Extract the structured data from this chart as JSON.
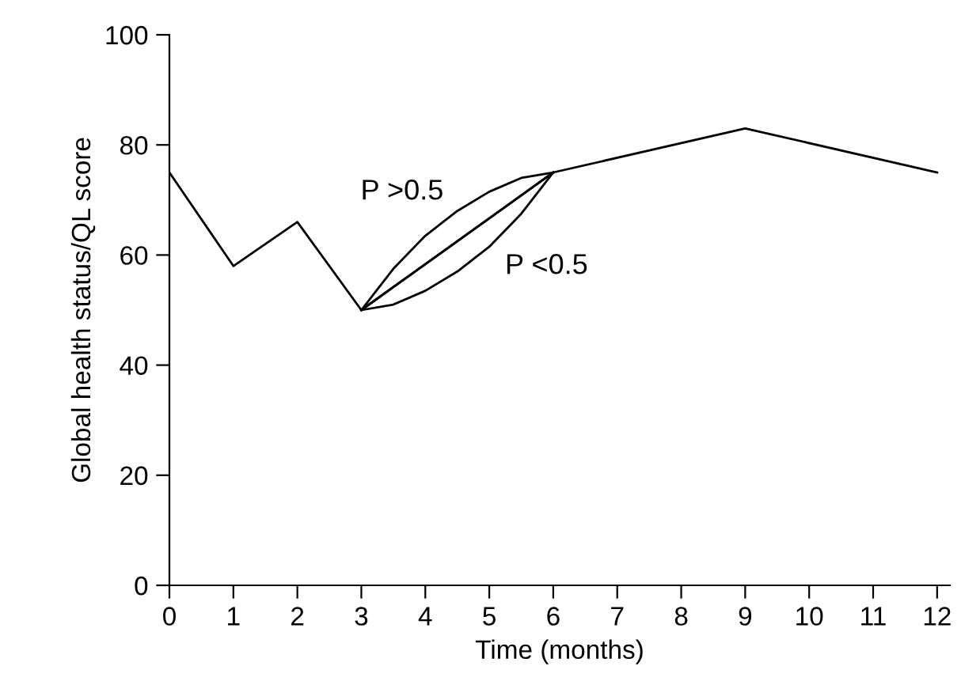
{
  "chart_data": {
    "type": "line",
    "xlabel": "Time (months)",
    "ylabel": "Global health status/QL score",
    "xlim": [
      0,
      12.2
    ],
    "xticks": [
      0,
      1,
      2,
      3,
      4,
      5,
      6,
      7,
      8,
      9,
      10,
      11,
      12
    ],
    "ylim": [
      0,
      100
    ],
    "yticks": [
      0,
      20,
      40,
      60,
      80,
      100
    ],
    "grid": false,
    "legend": false,
    "marker": "none",
    "line_style": "solid",
    "series": [
      {
        "color": "#000000",
        "x": [
          0,
          1,
          2,
          3,
          6,
          9,
          12
        ],
        "values": [
          75,
          58,
          66,
          50,
          75,
          83,
          75
        ]
      },
      {
        "color": "#000000",
        "x": [
          3,
          6
        ],
        "values": [
          50,
          75
        ]
      },
      {
        "color": "#000000",
        "x": [
          3,
          3.5,
          4,
          4.5,
          5,
          5.5,
          6
        ],
        "values": [
          50,
          57.5,
          63.5,
          68,
          71.5,
          74,
          75
        ]
      },
      {
        "color": "#000000",
        "x": [
          3,
          3.5,
          4,
          4.5,
          5,
          5.5,
          6
        ],
        "values": [
          50,
          51,
          53.5,
          57,
          61.5,
          67.5,
          75
        ]
      }
    ],
    "annotations": [
      "P >0.5",
      "P <0.5"
    ]
  }
}
